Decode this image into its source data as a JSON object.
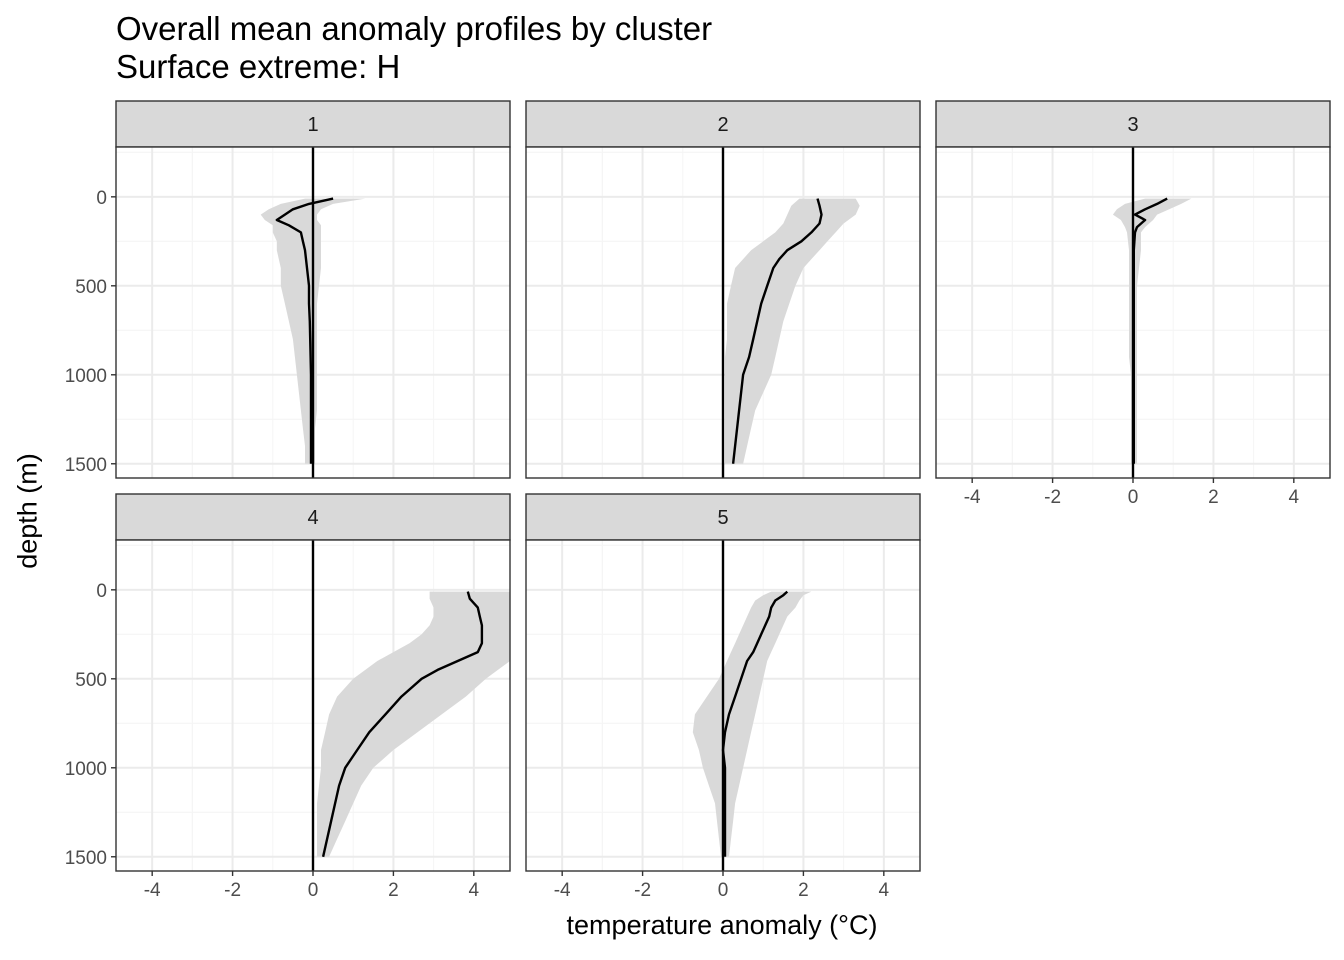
{
  "title": "Overall mean anomaly profiles by cluster",
  "subtitle": "Surface extreme: H",
  "chart_data": {
    "type": "line",
    "title": "Overall mean anomaly profiles by cluster",
    "subtitle": "Surface extreme: H",
    "xlabel": "temperature anomaly (°C)",
    "ylabel": "depth (m)",
    "xlim": [
      -4.9,
      4.9
    ],
    "ylim": [
      1580,
      -280
    ],
    "x_ticks": [
      -4,
      -2,
      0,
      2,
      4
    ],
    "x_tick_labels": [
      "-4",
      "-2",
      "0",
      "2",
      "4"
    ],
    "y_ticks": [
      0,
      500,
      1000,
      1500
    ],
    "y_tick_labels": [
      "0",
      "500",
      "1000",
      "1500"
    ],
    "reference_line_x": 0,
    "grid": true,
    "layout": "facet grid, 3 columns x 2 rows",
    "panels": [
      {
        "label": "1",
        "depth": [
          10,
          40,
          70,
          100,
          130,
          160,
          200,
          250,
          300,
          400,
          500,
          600,
          700,
          800,
          900,
          1000,
          1100,
          1200,
          1300,
          1400,
          1500
        ],
        "mean": [
          0.5,
          -0.1,
          -0.5,
          -0.7,
          -0.9,
          -0.6,
          -0.3,
          -0.25,
          -0.2,
          -0.15,
          -0.1,
          -0.1,
          -0.08,
          -0.07,
          -0.06,
          -0.05,
          -0.05,
          -0.05,
          -0.05,
          -0.05,
          -0.05
        ],
        "lower": [
          -0.2,
          -0.8,
          -1.1,
          -1.3,
          -1.2,
          -1.0,
          -1.0,
          -0.9,
          -0.9,
          -0.8,
          -0.8,
          -0.7,
          -0.6,
          -0.5,
          -0.45,
          -0.4,
          -0.35,
          -0.3,
          -0.25,
          -0.2,
          -0.2
        ],
        "upper": [
          1.3,
          0.5,
          0.2,
          0.1,
          0.1,
          0.2,
          0.2,
          0.2,
          0.2,
          0.2,
          0.15,
          0.1,
          0.1,
          0.1,
          0.1,
          0.1,
          0.1,
          0.1,
          0.05,
          0.05,
          0.05
        ]
      },
      {
        "label": "2",
        "depth": [
          10,
          50,
          100,
          150,
          200,
          250,
          300,
          350,
          400,
          500,
          600,
          700,
          800,
          900,
          1000,
          1100,
          1200,
          1300,
          1400,
          1500
        ],
        "mean": [
          2.35,
          2.4,
          2.45,
          2.4,
          2.2,
          1.95,
          1.6,
          1.4,
          1.25,
          1.1,
          0.95,
          0.85,
          0.75,
          0.65,
          0.5,
          0.45,
          0.4,
          0.35,
          0.3,
          0.25
        ],
        "lower": [
          1.9,
          1.7,
          1.6,
          1.5,
          1.3,
          1.0,
          0.7,
          0.5,
          0.3,
          0.2,
          0.1,
          0.1,
          0.1,
          0.05,
          0.05,
          0.05,
          0.05,
          0.05,
          0.05,
          0.05
        ],
        "upper": [
          3.3,
          3.4,
          3.3,
          3.0,
          2.8,
          2.6,
          2.4,
          2.2,
          2.0,
          1.8,
          1.65,
          1.5,
          1.4,
          1.3,
          1.2,
          1.0,
          0.8,
          0.7,
          0.6,
          0.5
        ]
      },
      {
        "label": "3",
        "depth": [
          10,
          40,
          70,
          100,
          130,
          170,
          200,
          300,
          400,
          500,
          600,
          700,
          800,
          900,
          1000,
          1100,
          1200,
          1300,
          1400,
          1500
        ],
        "mean": [
          0.85,
          0.6,
          0.3,
          0.05,
          0.3,
          0.1,
          0.05,
          0.02,
          0.02,
          0.02,
          0.02,
          0.02,
          0.02,
          0.02,
          0.02,
          0.02,
          0.02,
          0.02,
          0.02,
          0.02
        ],
        "lower": [
          0.3,
          -0.2,
          -0.4,
          -0.5,
          -0.3,
          -0.2,
          -0.15,
          -0.1,
          -0.1,
          -0.1,
          -0.1,
          -0.1,
          -0.1,
          -0.1,
          -0.05,
          -0.05,
          -0.05,
          -0.05,
          -0.05,
          -0.05
        ],
        "upper": [
          1.45,
          1.2,
          0.9,
          0.6,
          0.5,
          0.3,
          0.2,
          0.2,
          0.15,
          0.1,
          0.1,
          0.1,
          0.1,
          0.1,
          0.1,
          0.1,
          0.1,
          0.1,
          0.1,
          0.1
        ]
      },
      {
        "label": "4",
        "depth": [
          10,
          50,
          100,
          150,
          200,
          250,
          300,
          350,
          400,
          450,
          500,
          600,
          700,
          800,
          900,
          1000,
          1100,
          1200,
          1300,
          1400,
          1500
        ],
        "mean": [
          3.85,
          3.9,
          4.1,
          4.15,
          4.2,
          4.2,
          4.2,
          4.1,
          3.6,
          3.1,
          2.7,
          2.2,
          1.8,
          1.4,
          1.1,
          0.8,
          0.65,
          0.55,
          0.45,
          0.35,
          0.25
        ],
        "lower": [
          2.9,
          2.9,
          3.0,
          3.0,
          2.9,
          2.7,
          2.4,
          2.0,
          1.6,
          1.3,
          1.0,
          0.6,
          0.4,
          0.3,
          0.2,
          0.2,
          0.15,
          0.1,
          0.1,
          0.1,
          0.1
        ],
        "upper": [
          4.9,
          4.9,
          4.9,
          4.9,
          4.9,
          4.9,
          4.9,
          4.9,
          4.9,
          4.6,
          4.3,
          3.8,
          3.2,
          2.6,
          2.0,
          1.5,
          1.2,
          1.0,
          0.8,
          0.6,
          0.4
        ]
      },
      {
        "label": "5",
        "depth": [
          10,
          30,
          60,
          100,
          150,
          200,
          250,
          300,
          350,
          400,
          500,
          600,
          700,
          800,
          900,
          1000,
          1100,
          1200,
          1300,
          1400,
          1500
        ],
        "mean": [
          1.6,
          1.5,
          1.3,
          1.2,
          1.15,
          1.05,
          0.95,
          0.85,
          0.75,
          0.6,
          0.45,
          0.3,
          0.15,
          0.05,
          0.0,
          0.05,
          0.05,
          0.05,
          0.05,
          0.05,
          0.05
        ],
        "lower": [
          1.2,
          1.0,
          0.8,
          0.7,
          0.6,
          0.5,
          0.4,
          0.3,
          0.2,
          0.1,
          -0.1,
          -0.4,
          -0.7,
          -0.75,
          -0.6,
          -0.5,
          -0.35,
          -0.2,
          -0.15,
          -0.1,
          -0.05
        ],
        "upper": [
          2.2,
          2.0,
          1.9,
          1.8,
          1.6,
          1.5,
          1.4,
          1.3,
          1.2,
          1.1,
          1.0,
          0.9,
          0.8,
          0.7,
          0.6,
          0.5,
          0.4,
          0.3,
          0.25,
          0.2,
          0.15
        ]
      }
    ]
  },
  "colors": {
    "ribbon": "#d9d9d9",
    "line": "#000000",
    "strip_fill": "#d9d9d9",
    "panel_border": "#333333",
    "grid_major": "#ebebeb",
    "grid_minor": "#f5f5f5",
    "tick_text": "#4d4d4d"
  }
}
